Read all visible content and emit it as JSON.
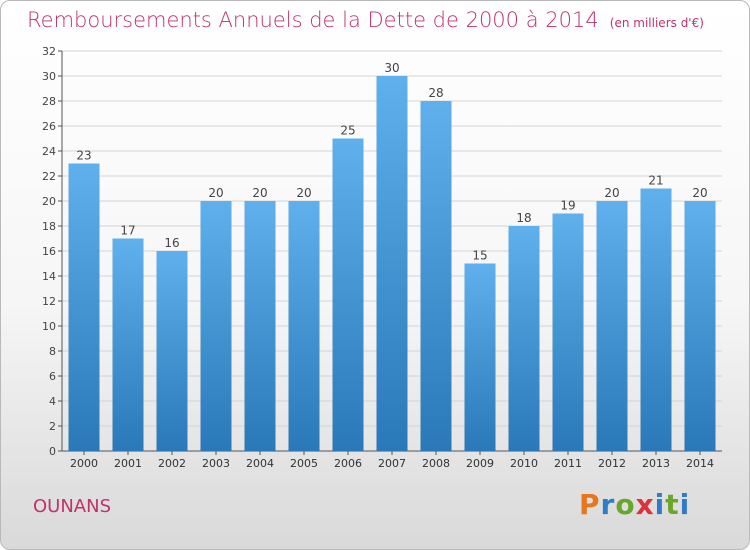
{
  "chart_data": {
    "type": "bar",
    "title": "Remboursements Annuels de la Dette de 2000 à 2014",
    "subtitle": "(en milliers d'€)",
    "categories": [
      "2000",
      "2001",
      "2002",
      "2003",
      "2004",
      "2005",
      "2006",
      "2007",
      "2008",
      "2009",
      "2010",
      "2011",
      "2012",
      "2013",
      "2014"
    ],
    "values": [
      23,
      17,
      16,
      20,
      20,
      20,
      25,
      30,
      28,
      15,
      18,
      19,
      20,
      21,
      20
    ],
    "ylim": [
      0,
      32
    ],
    "yticks": [
      0,
      2,
      4,
      6,
      8,
      10,
      12,
      14,
      16,
      18,
      20,
      22,
      24,
      26,
      28,
      30,
      32
    ],
    "grid": true,
    "colors": {
      "bar_top": "#5fb0ec",
      "bar_bottom": "#2a78b8",
      "title": "#c0326a"
    }
  },
  "footer": {
    "town": "OUNANS",
    "logo_text": "Proxiti"
  }
}
